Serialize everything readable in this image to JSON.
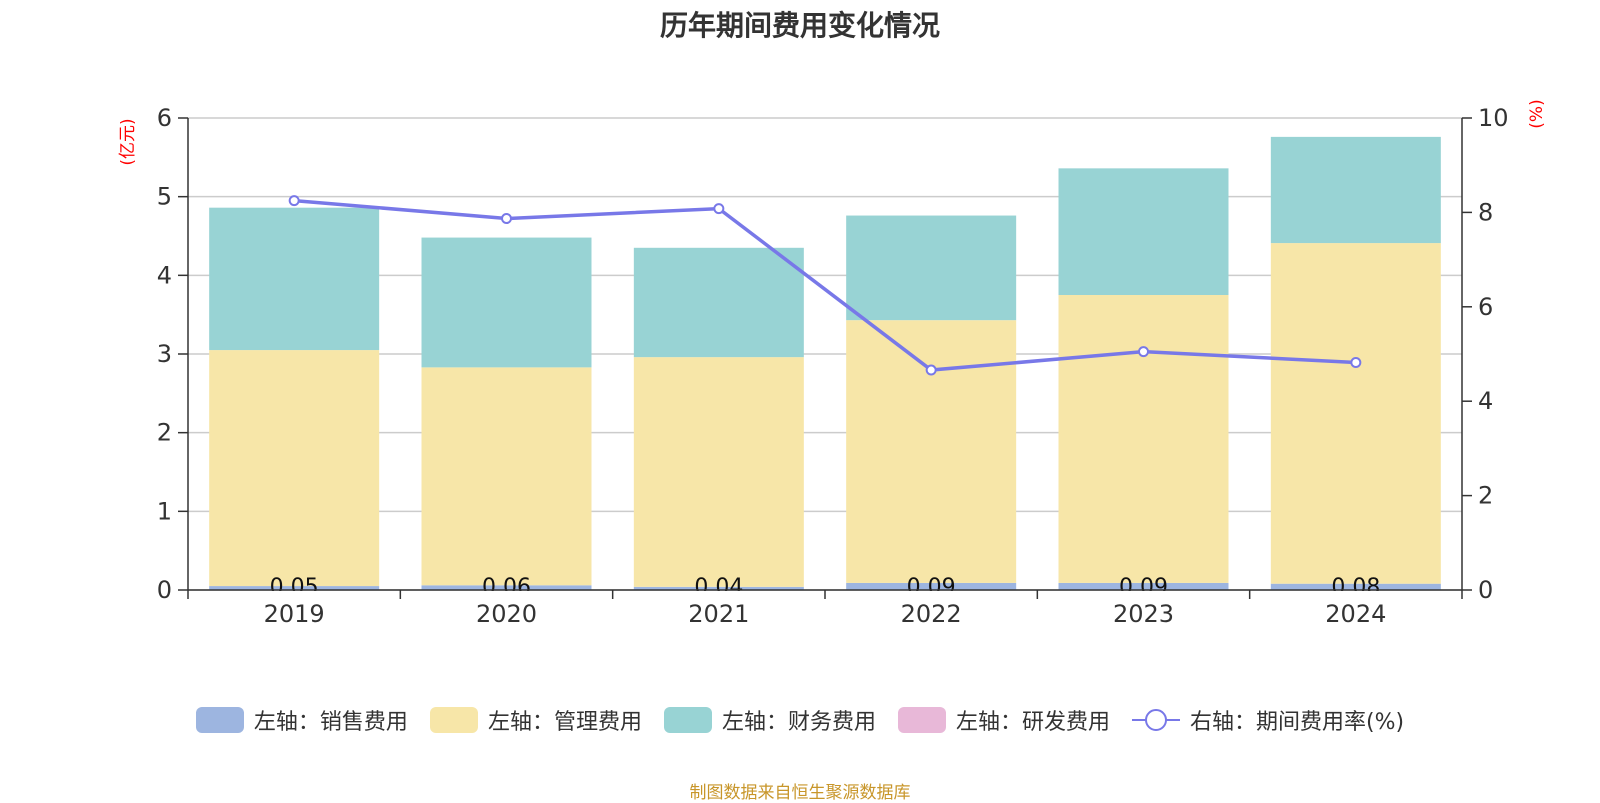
{
  "title": "历年期间费用变化情况",
  "source": "制图数据来自恒生聚源数据库",
  "colors": {
    "sales": "#9db5e0",
    "admin": "#f7e6a8",
    "finance": "#98d3d4",
    "rnd": "#e8b8d8",
    "rate": "#7878e8",
    "axis_unit": "#ff0000",
    "grid": "#cccccc",
    "axis": "#333333"
  },
  "legend": [
    {
      "label": "左轴：销售费用",
      "color_key": "sales",
      "kind": "bar"
    },
    {
      "label": "左轴：管理费用",
      "color_key": "admin",
      "kind": "bar"
    },
    {
      "label": "左轴：财务费用",
      "color_key": "finance",
      "kind": "bar"
    },
    {
      "label": "左轴：研发费用",
      "color_key": "rnd",
      "kind": "bar"
    },
    {
      "label": "右轴：期间费用率(%)",
      "color_key": "rate",
      "kind": "line"
    }
  ],
  "chart_data": {
    "type": "bar",
    "stacked": true,
    "title": "历年期间费用变化情况",
    "categories": [
      "2019",
      "2020",
      "2021",
      "2022",
      "2023",
      "2024"
    ],
    "ylabel_left": "(亿元)",
    "ylabel_right": "(%)",
    "ylim_left": [
      0,
      6
    ],
    "ylim_right": [
      0,
      10
    ],
    "yticks_left": [
      0,
      1,
      2,
      3,
      4,
      5,
      6
    ],
    "yticks_right": [
      0,
      2,
      4,
      6,
      8,
      10
    ],
    "grid": true,
    "legend_position": "bottom",
    "series": [
      {
        "name": "左轴：销售费用",
        "axis": "left",
        "color_key": "sales",
        "values": [
          0.05,
          0.06,
          0.04,
          0.09,
          0.09,
          0.08
        ],
        "labels": [
          "0.05",
          "0.06",
          "0.04",
          "0.09",
          "0.09",
          "0.08"
        ]
      },
      {
        "name": "左轴：管理费用",
        "axis": "left",
        "color_key": "admin",
        "values": [
          3.0,
          2.77,
          2.92,
          3.34,
          3.66,
          4.33
        ]
      },
      {
        "name": "左轴：财务费用",
        "axis": "left",
        "color_key": "finance",
        "values": [
          1.81,
          1.65,
          1.39,
          1.33,
          1.61,
          1.35
        ]
      },
      {
        "name": "左轴：研发费用",
        "axis": "left",
        "color_key": "rnd",
        "values": [
          0,
          0,
          0,
          0,
          0,
          0
        ]
      },
      {
        "name": "右轴：期间费用率(%)",
        "axis": "right",
        "type": "line",
        "color_key": "rate",
        "values": [
          8.25,
          7.87,
          8.08,
          4.66,
          5.05,
          4.82
        ]
      }
    ]
  }
}
